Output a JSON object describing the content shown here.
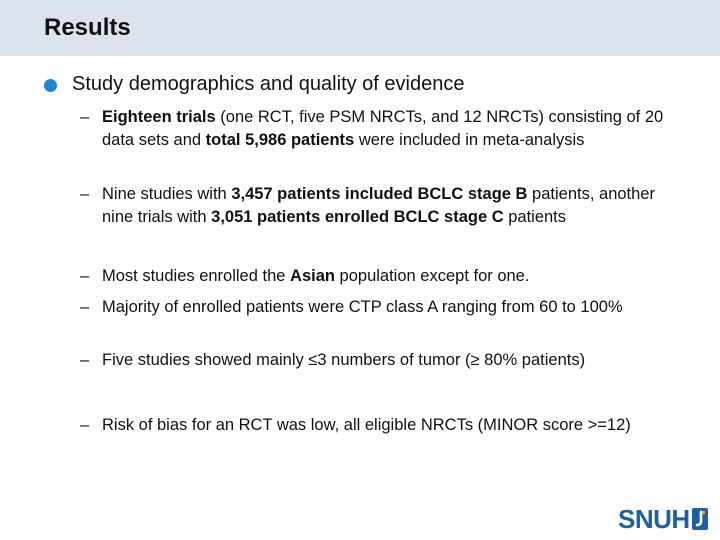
{
  "slide": {
    "title": "Results",
    "bullet": "Study demographics and quality of evidence",
    "dash": "–",
    "sub_items": [
      {
        "parts": [
          {
            "text": "Eighteen trials",
            "bold": true
          },
          {
            "text": " (one RCT, five PSM NRCTs, and 12 NRCTs) consisting of 20 data sets and ",
            "bold": false
          },
          {
            "text": "total 5,986 patients",
            "bold": true
          },
          {
            "text": " were included in meta-analysis",
            "bold": false
          }
        ]
      },
      {
        "parts": [
          {
            "text": "Nine studies with ",
            "bold": false
          },
          {
            "text": "3,457 patients included BCLC stage B",
            "bold": true
          },
          {
            "text": " patients, another nine trials with ",
            "bold": false
          },
          {
            "text": "3,051 patients enrolled BCLC stage C",
            "bold": true
          },
          {
            "text": " patients",
            "bold": false
          }
        ]
      },
      {
        "parts": [
          {
            "text": "Most studies enrolled the ",
            "bold": false
          },
          {
            "text": "Asian",
            "bold": true
          },
          {
            "text": " population except for one.",
            "bold": false
          }
        ]
      },
      {
        "parts": [
          {
            "text": "Majority of enrolled patients were CTP class A ranging from 60 to 100%",
            "bold": false
          }
        ]
      },
      {
        "parts": [
          {
            "text": "Five studies showed mainly ≤3 numbers of tumor (≥ 80% patients)",
            "bold": false
          }
        ]
      },
      {
        "parts": [
          {
            "text": "Risk of bias for an RCT was low, all eligible NRCTs (MINOR score >=12)",
            "bold": false
          }
        ]
      }
    ],
    "logo": {
      "text": "SNUH",
      "icon": "snuh-logo-icon",
      "color": "#1f5fa8"
    }
  }
}
